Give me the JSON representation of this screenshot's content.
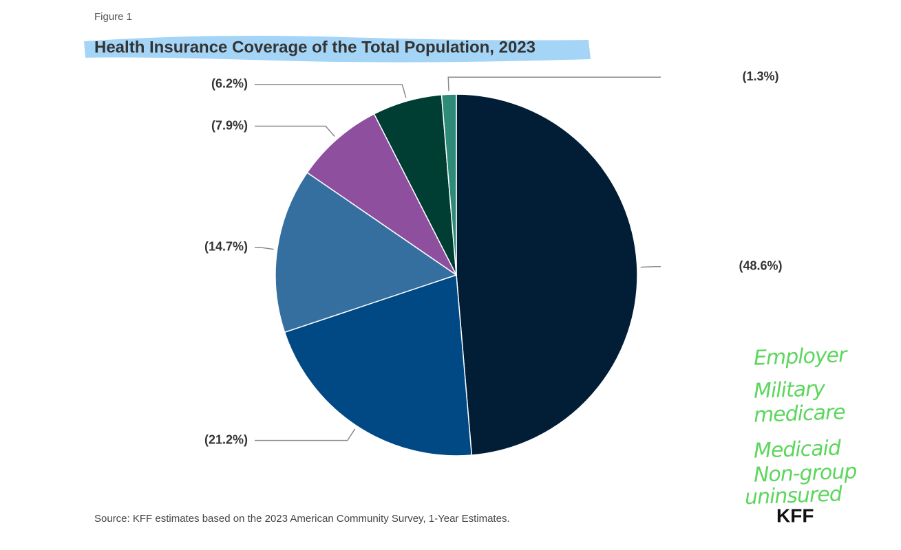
{
  "figure_label": "Figure 1",
  "chart_data": {
    "type": "pie",
    "title": "Health Insurance Coverage of the Total Population, 2023",
    "values": [
      48.6,
      21.2,
      14.7,
      7.9,
      6.2,
      1.3
    ],
    "value_labels": [
      "(48.6%)",
      "(21.2%)",
      "(14.7%)",
      "(7.9%)",
      "(6.2%)",
      "(1.3%)"
    ],
    "colors": [
      "#021d36",
      "#004985",
      "#356f9f",
      "#8e4f9e",
      "#003d33",
      "#2e8b78"
    ],
    "source": "Source: KFF estimates based on the 2023 American Community Survey, 1-Year Estimates."
  },
  "annotations": [
    "Employer",
    "Military",
    "medicare",
    "Medicaid",
    "Non-group",
    "uninsured"
  ],
  "logo": "KFF"
}
